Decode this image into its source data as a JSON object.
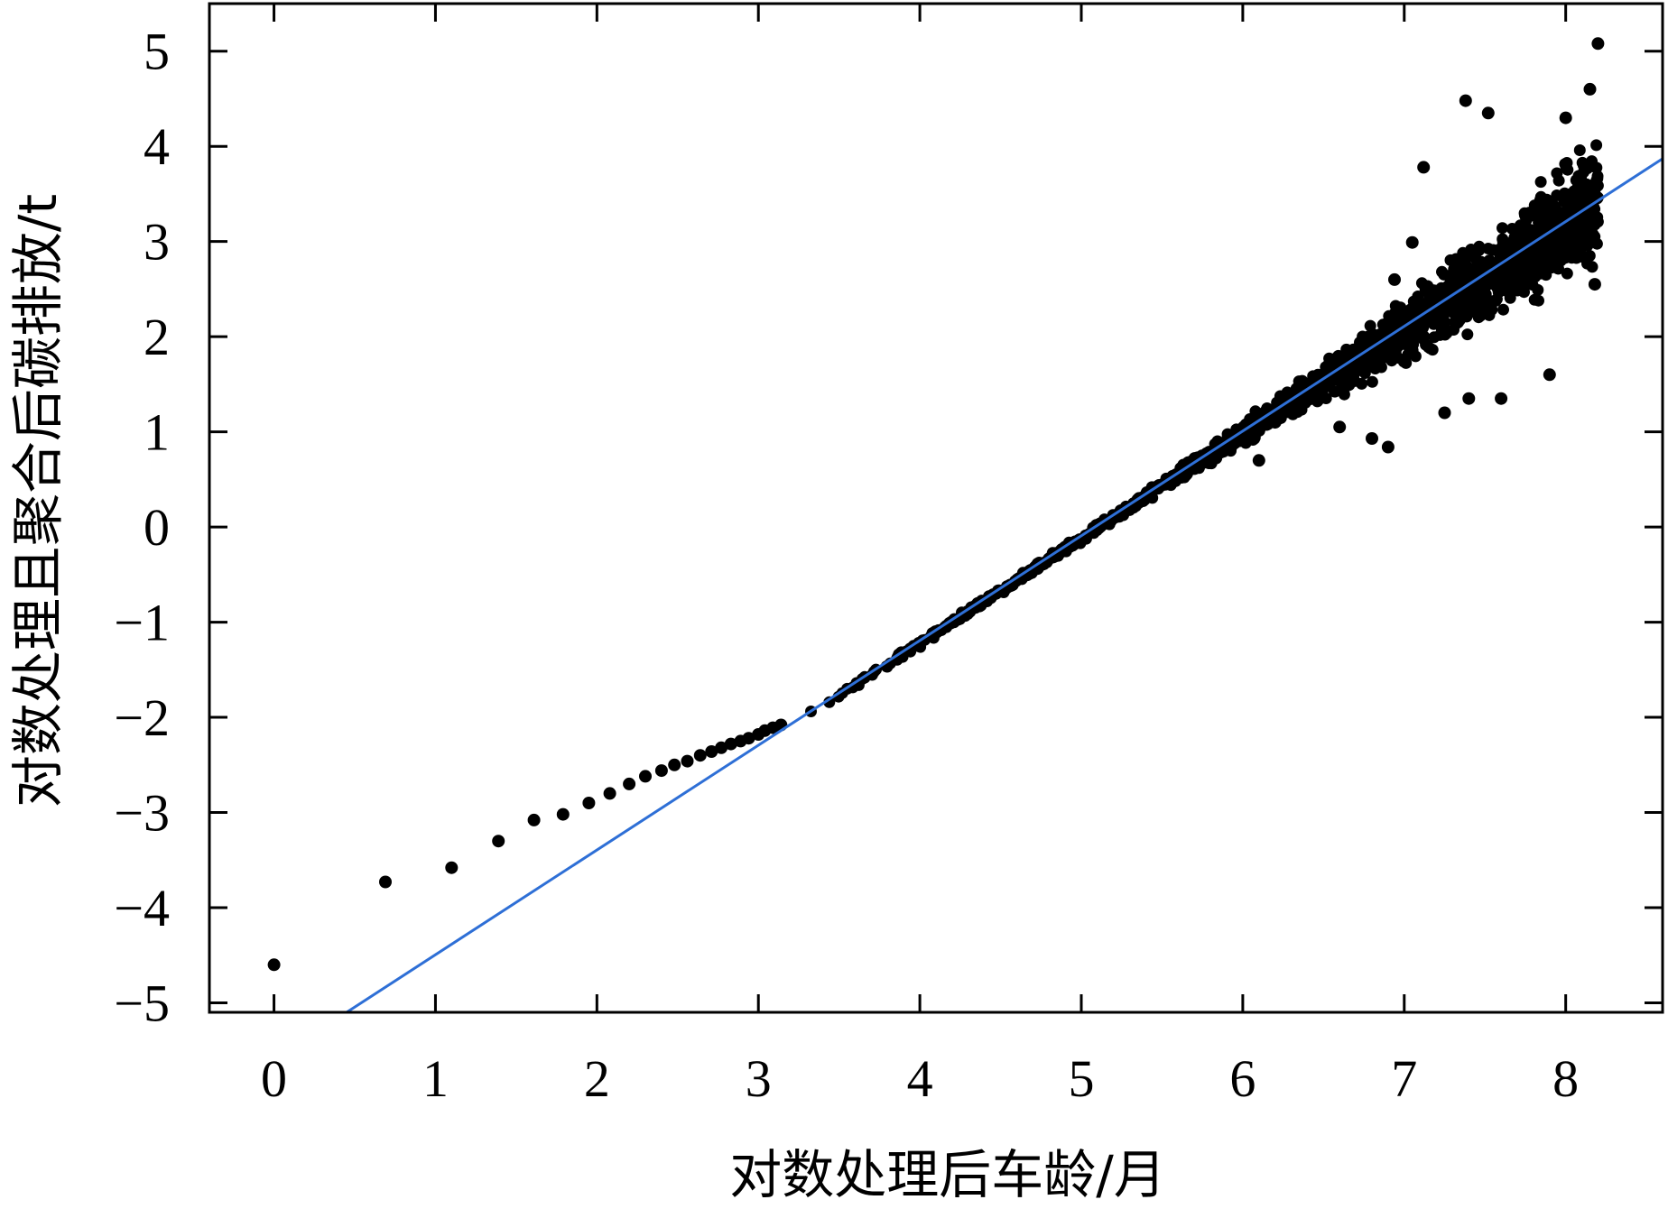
{
  "chart_data": {
    "type": "scatter",
    "title": "",
    "xlabel": "对数处理后车龄/月",
    "ylabel": "对数处理且聚合后碳排放/t",
    "xlim": [
      -0.4,
      8.6
    ],
    "ylim": [
      -5.1,
      5.5
    ],
    "x_ticks": [
      0,
      1,
      2,
      3,
      4,
      5,
      6,
      7,
      8
    ],
    "x_tick_labels": [
      "0",
      "1",
      "2",
      "3",
      "4",
      "5",
      "6",
      "7",
      "8"
    ],
    "y_ticks": [
      5,
      4,
      3,
      2,
      1,
      0,
      -1,
      -2,
      -3,
      -4,
      -5
    ],
    "y_tick_labels": [
      "5",
      "4",
      "3",
      "2",
      "1",
      "0",
      "−1",
      "−2",
      "−3",
      "−4",
      "−5"
    ],
    "grid": false,
    "legend": "none",
    "series": [
      {
        "kind": "points",
        "color": "#000000",
        "points": [
          [
            0.0,
            -4.6
          ],
          [
            0.69,
            -3.73
          ],
          [
            1.1,
            -3.58
          ],
          [
            1.39,
            -3.3
          ],
          [
            1.61,
            -3.08
          ],
          [
            1.79,
            -3.02
          ],
          [
            1.95,
            -2.9
          ],
          [
            2.08,
            -2.8
          ],
          [
            2.2,
            -2.7
          ],
          [
            2.3,
            -2.62
          ],
          [
            2.4,
            -2.56
          ],
          [
            2.48,
            -2.5
          ],
          [
            2.56,
            -2.46
          ],
          [
            2.64,
            -2.4
          ],
          [
            2.71,
            -2.36
          ],
          [
            2.77,
            -2.32
          ],
          [
            2.83,
            -2.28
          ],
          [
            2.89,
            -2.25
          ],
          [
            2.94,
            -2.22
          ],
          [
            3.0,
            -2.18
          ],
          [
            3.04,
            -2.14
          ],
          [
            3.09,
            -2.11
          ],
          [
            3.14,
            -2.08
          ],
          [
            7.38,
            4.48
          ],
          [
            7.52,
            4.35
          ],
          [
            8.2,
            5.08
          ],
          [
            7.12,
            3.78
          ],
          [
            7.05,
            2.99
          ],
          [
            6.94,
            2.6
          ],
          [
            6.8,
            0.93
          ],
          [
            6.9,
            0.84
          ],
          [
            7.25,
            1.2
          ],
          [
            7.4,
            1.35
          ],
          [
            7.6,
            1.35
          ],
          [
            7.9,
            1.6
          ],
          [
            8.18,
            2.55
          ],
          [
            8.0,
            4.3
          ],
          [
            8.15,
            4.6
          ],
          [
            6.6,
            1.05
          ],
          [
            6.2,
            1.1
          ],
          [
            6.1,
            0.7
          ]
        ]
      },
      {
        "kind": "fit-line",
        "color": "#2e6fd6",
        "from": [
          0.45,
          -5.1
        ],
        "to": [
          8.6,
          3.87
        ]
      }
    ]
  }
}
